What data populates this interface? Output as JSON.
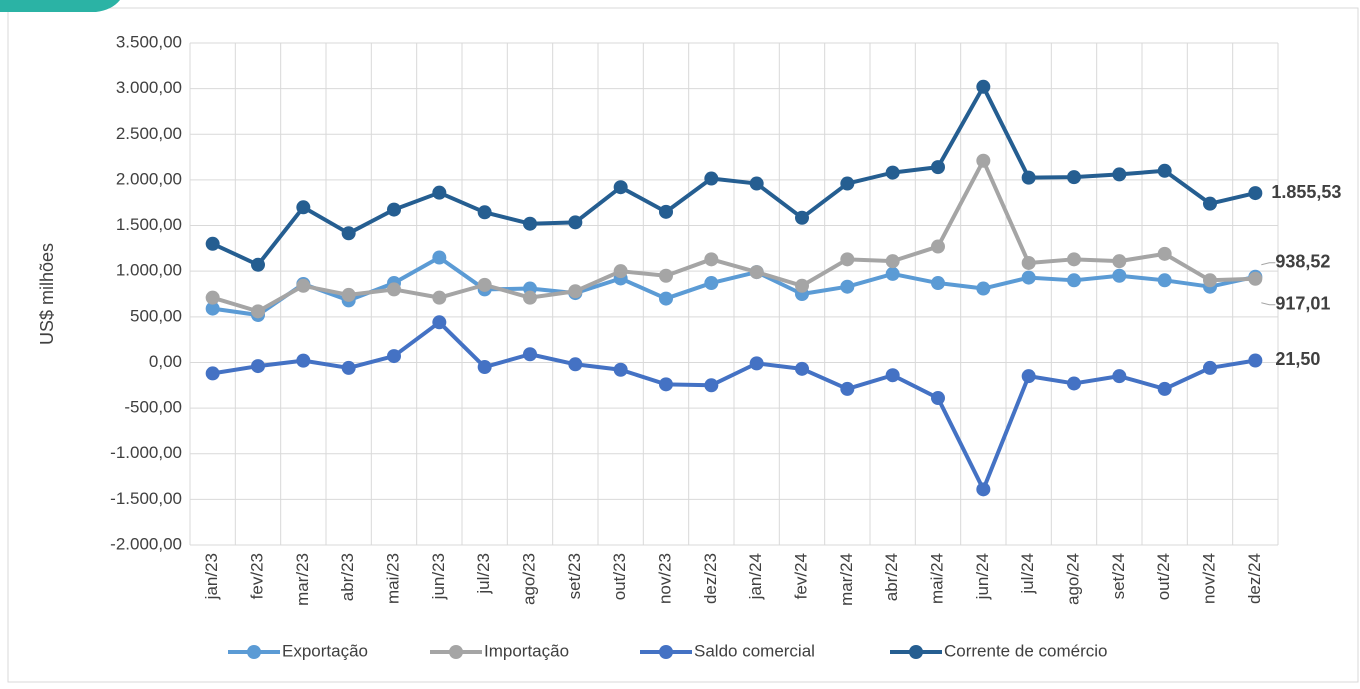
{
  "chart_data": {
    "type": "line",
    "y_label": "US$ milhões",
    "categories": [
      "jan/23",
      "fev/23",
      "mar/23",
      "abr/23",
      "mai/23",
      "jun/23",
      "jul/23",
      "ago/23",
      "set/23",
      "out/23",
      "nov/23",
      "dez/23",
      "jan/24",
      "fev/24",
      "mar/24",
      "abr/24",
      "mai/24",
      "jun/24",
      "jul/24",
      "ago/24",
      "set/24",
      "out/24",
      "nov/24",
      "dez/24"
    ],
    "series": [
      {
        "name": "Exportação",
        "color": "#5b9bd5",
        "values": [
          590,
          520,
          860,
          680,
          870,
          1150,
          800,
          810,
          760,
          920,
          700,
          870,
          990,
          750,
          830,
          970,
          870,
          810,
          930,
          900,
          950,
          900,
          830,
          938.52
        ],
        "value_labels": [
          null,
          null,
          null,
          null,
          null,
          null,
          null,
          null,
          null,
          null,
          null,
          null,
          null,
          null,
          null,
          null,
          null,
          null,
          null,
          null,
          null,
          null,
          null,
          "938,52"
        ]
      },
      {
        "name": "Importação",
        "color": "#a5a5a5",
        "values": [
          710,
          560,
          840,
          740,
          800,
          710,
          850,
          710,
          780,
          1000,
          950,
          1130,
          990,
          840,
          1130,
          1110,
          1270,
          2210,
          1090,
          1130,
          1110,
          1190,
          900,
          917.01
        ],
        "value_labels": [
          null,
          null,
          null,
          null,
          null,
          null,
          null,
          null,
          null,
          null,
          null,
          null,
          null,
          null,
          null,
          null,
          null,
          null,
          null,
          null,
          null,
          null,
          null,
          "917,01"
        ]
      },
      {
        "name": "Saldo comercial",
        "color": "#4472c4",
        "values": [
          -120,
          -40,
          20,
          -60,
          70,
          440,
          -50,
          90,
          -20,
          -80,
          -240,
          -250,
          -10,
          -70,
          -290,
          -140,
          -390,
          -1390,
          -150,
          -230,
          -150,
          -290,
          -60,
          21.5
        ],
        "value_labels": [
          null,
          null,
          null,
          null,
          null,
          null,
          null,
          null,
          null,
          null,
          null,
          null,
          null,
          null,
          null,
          null,
          null,
          null,
          null,
          null,
          null,
          null,
          null,
          "21,50"
        ]
      },
      {
        "name": "Corrente de comércio",
        "color": "#255e91",
        "values": [
          1300,
          1070,
          1700,
          1415,
          1675,
          1860,
          1645,
          1520,
          1535,
          1920,
          1650,
          2015,
          1960,
          1585,
          1960,
          2080,
          2140,
          3020,
          2025,
          2030,
          2060,
          2100,
          1740,
          1855.53
        ],
        "value_labels": [
          null,
          null,
          null,
          null,
          null,
          null,
          null,
          null,
          null,
          null,
          null,
          null,
          null,
          null,
          null,
          null,
          null,
          null,
          null,
          null,
          null,
          null,
          null,
          "1.855,53"
        ]
      }
    ],
    "ylim": [
      -2000,
      3500
    ],
    "yticks": [
      {
        "value": -2000,
        "label": "-2.000,00"
      },
      {
        "value": -1500,
        "label": "-1.500,00"
      },
      {
        "value": -1000,
        "label": "-1.000,00"
      },
      {
        "value": -500,
        "label": "-500,00"
      },
      {
        "value": 0,
        "label": "0,00"
      },
      {
        "value": 500,
        "label": "500,00"
      },
      {
        "value": 1000,
        "label": "1.000,00"
      },
      {
        "value": 1500,
        "label": "1.500,00"
      },
      {
        "value": 2000,
        "label": "2.000,00"
      },
      {
        "value": 2500,
        "label": "2.500,00"
      },
      {
        "value": 3000,
        "label": "3.000,00"
      },
      {
        "value": 3500,
        "label": "3.500,00"
      }
    ],
    "grid": true
  }
}
